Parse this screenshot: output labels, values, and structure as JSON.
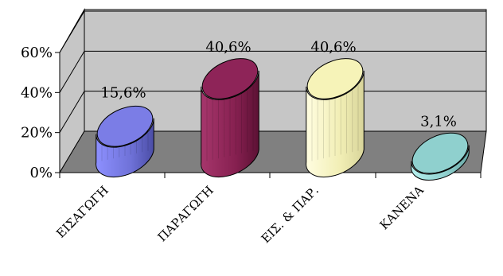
{
  "chart_data": {
    "type": "bar",
    "style": "3d-cylinder",
    "categories": [
      "ΕΙΣΑΓΩΓΗ",
      "ΠΑΡΑΓΩΓΗ",
      "ΕΙΣ. & ΠΑΡ.",
      "ΚΑΝΕΝΑ"
    ],
    "values": [
      15.6,
      40.6,
      40.6,
      3.1
    ],
    "data_labels": [
      "15,6%",
      "40,6%",
      "40,6%",
      "3,1%"
    ],
    "y_ticks": [
      "0%",
      "20%",
      "40%",
      "60%"
    ],
    "ylim": [
      0,
      60
    ],
    "grid": true,
    "legend": "none",
    "colors": {
      "bars": [
        "#7b7de6",
        "#8e2458",
        "#f6f3b8",
        "#8fd0ce"
      ],
      "wall": "#c6c6c6",
      "floor": "#808080"
    }
  }
}
